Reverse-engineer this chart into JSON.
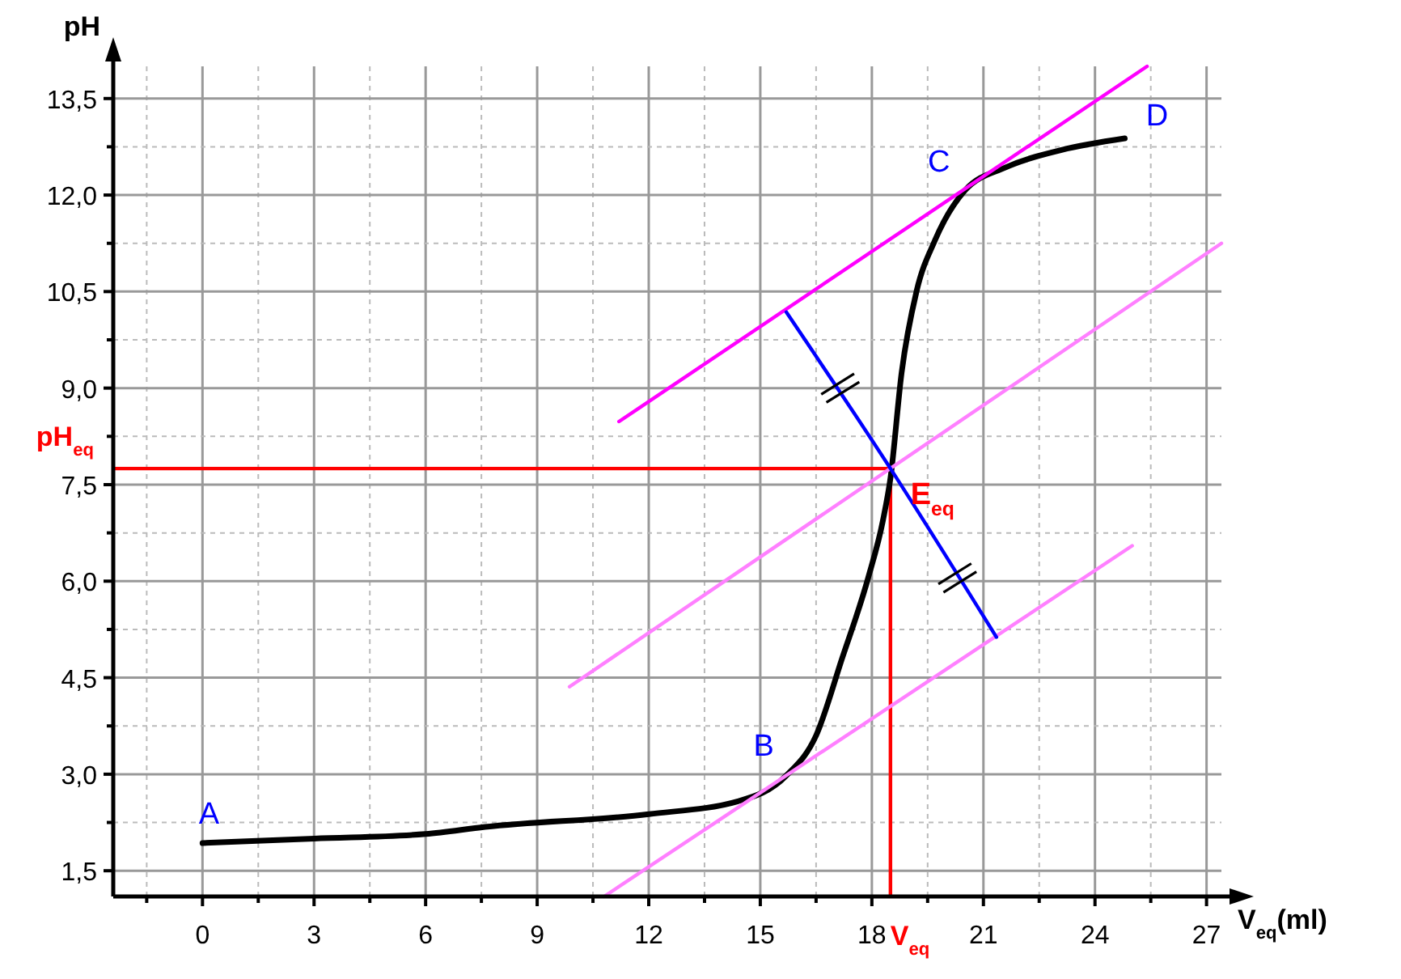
{
  "chart_data": {
    "type": "line",
    "xlabel": "V$_{eq}$(ml)",
    "ylabel": "pH",
    "xlim": [
      -2.4,
      27.4
    ],
    "ylim": [
      1.1,
      14.0
    ],
    "xticks": [
      {
        "value": -1.5,
        "label": null
      },
      0,
      {
        "value": 1.5,
        "label": null
      },
      3,
      {
        "value": 4.5,
        "label": null
      },
      6,
      {
        "value": 7.5,
        "label": null
      },
      9,
      {
        "value": 10.5,
        "label": null
      },
      12,
      {
        "value": 13.5,
        "label": null
      },
      15,
      {
        "value": 16.5,
        "label": null
      },
      18,
      {
        "value": 19.5,
        "label": null
      },
      21,
      {
        "value": 22.5,
        "label": null
      },
      24,
      {
        "value": 25.5,
        "label": null
      },
      27
    ],
    "yticks": [
      {
        "value": 1.5,
        "label": "1,5"
      },
      {
        "value": 2.25,
        "label": null
      },
      {
        "value": 3,
        "label": "3,0"
      },
      {
        "value": 3.75,
        "label": null
      },
      {
        "value": 4.5,
        "label": "4,5"
      },
      {
        "value": 5.25,
        "label": null
      },
      {
        "value": 6,
        "label": "6,0"
      },
      {
        "value": 6.75,
        "label": null
      },
      {
        "value": 7.5,
        "label": "7,5"
      },
      {
        "value": 8.25,
        "label": null
      },
      {
        "value": 9,
        "label": "9,0"
      },
      {
        "value": 9.75,
        "label": null
      },
      {
        "value": 10.5,
        "label": "10,5"
      },
      {
        "value": 11.25,
        "label": null
      },
      {
        "value": 12,
        "label": "12,0"
      },
      {
        "value": 12.75,
        "label": null
      },
      {
        "value": 13.5,
        "label": "13,5"
      }
    ],
    "grid": true,
    "marker": "none",
    "line_style": "solid",
    "series": [
      {
        "color": "#000000",
        "x": [
          0,
          3,
          6,
          7.6,
          12,
          14.4,
          15.7,
          16.5,
          17.2,
          17.9,
          18.3,
          18.5,
          18.8,
          19.2,
          19.7,
          20.5,
          21.6,
          23.1,
          24.8
        ],
        "values": [
          1.93,
          2.0,
          2.07,
          2.18,
          2.38,
          2.58,
          2.98,
          3.6,
          4.8,
          6.05,
          6.95,
          7.6,
          9.24,
          10.5,
          11.3,
          12.07,
          12.43,
          12.7,
          12.88
        ]
      },
      {
        "color": "#ff00ff",
        "x": [
          11.2,
          25.4
        ],
        "values": [
          8.48,
          14.0
        ]
      },
      {
        "color": "#ff80ff",
        "x": [
          9.87,
          27.4
        ],
        "values": [
          4.36,
          11.25
        ]
      },
      {
        "color": "#ff80ff",
        "x": [
          10.8,
          25.0
        ],
        "values": [
          1.1,
          6.55
        ]
      },
      {
        "color": "#0000ff",
        "x": [
          15.7,
          18.5,
          21.35
        ],
        "values": [
          10.18,
          7.75,
          5.13
        ]
      }
    ],
    "ref_lines": [
      {
        "axis": "y",
        "value": 7.75,
        "label": "pH$_{eq}$",
        "color": "#ff0000"
      },
      {
        "axis": "x",
        "value": 18.5,
        "label": "V$_{eq}$",
        "color": "#ff0000"
      }
    ],
    "annotations": [
      {
        "text": "A",
        "x": 0,
        "y": 1.93
      },
      {
        "text": "B",
        "x": 15.7,
        "y": 2.98
      },
      {
        "text": "C",
        "x": 20.5,
        "y": 12.07
      },
      {
        "text": "D",
        "x": 24.8,
        "y": 12.88
      },
      {
        "text": "E$_{eq}$",
        "x": 18.5,
        "y": 7.75
      }
    ]
  }
}
